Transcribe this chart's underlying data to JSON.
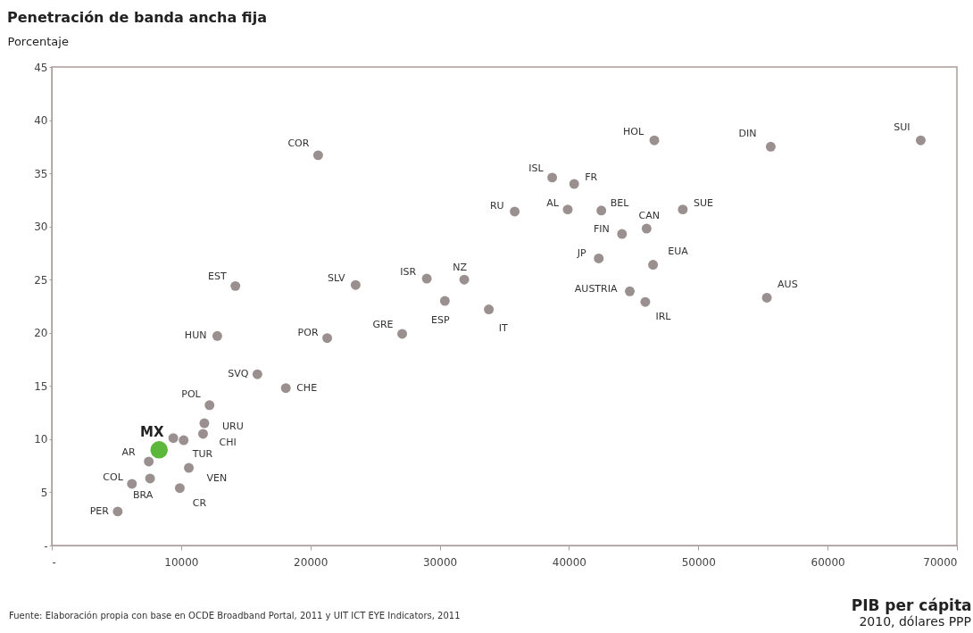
{
  "chart_data": {
    "type": "scatter",
    "title": "Penetración de banda ancha fija",
    "ylabel": "Porcentaje",
    "xlabel": "PIB per cápita",
    "series": [
      {
        "color": "#9a908f",
        "x": [
          20600,
          14200,
          12800,
          21300,
          15900,
          18100,
          12200,
          11800,
          11700,
          10200,
          7500,
          10600,
          6200,
          7600,
          9900,
          5100,
          23500,
          29000,
          31900,
          30400,
          33800,
          27100,
          35800,
          38700,
          40400,
          39900,
          42500,
          46000,
          44100,
          42300,
          46600,
          44700,
          45900,
          46500,
          48800,
          55600,
          55300,
          67200,
          9400
        ],
        "values": [
          36.7,
          24.4,
          19.7,
          19.5,
          16.1,
          14.8,
          13.2,
          11.5,
          10.5,
          9.9,
          7.9,
          7.3,
          5.8,
          6.3,
          5.4,
          3.2,
          24.5,
          25.1,
          25.0,
          23.0,
          22.2,
          19.9,
          31.4,
          34.6,
          34.0,
          31.6,
          31.5,
          29.8,
          29.3,
          27.0,
          38.1,
          23.9,
          22.9,
          26.4,
          31.6,
          37.5,
          23.3,
          38.1,
          10.1
        ]
      },
      {
        "name": "MX",
        "color": "#5cb83a",
        "x": [
          8300
        ],
        "values": [
          9.0
        ]
      }
    ],
    "xlim": [
      0,
      70000
    ],
    "xticks": [
      {
        "value": 0,
        "label": "-"
      },
      10000,
      20000,
      30000,
      40000,
      50000,
      60000,
      70000
    ],
    "ylim": [
      0,
      45
    ],
    "yticks": [
      {
        "value": 0,
        "label": "-"
      },
      5,
      10,
      15,
      20,
      25,
      30,
      35,
      40,
      45
    ],
    "grid": false,
    "annotations": [
      {
        "text": "COR",
        "x": 20600,
        "y": 36.7
      },
      {
        "text": "EST",
        "x": 14200,
        "y": 24.4
      },
      {
        "text": "HUN",
        "x": 12800,
        "y": 19.7
      },
      {
        "text": "POR",
        "x": 21300,
        "y": 19.5
      },
      {
        "text": "SVQ",
        "x": 15900,
        "y": 16.1
      },
      {
        "text": "CHE",
        "x": 18100,
        "y": 14.8
      },
      {
        "text": "POL",
        "x": 12200,
        "y": 13.2
      },
      {
        "text": "URU",
        "x": 11800,
        "y": 11.5
      },
      {
        "text": "CHI",
        "x": 11700,
        "y": 10.5
      },
      {
        "text": "TUR",
        "x": 10200,
        "y": 9.9
      },
      {
        "text": "AR",
        "x": 7500,
        "y": 7.9
      },
      {
        "text": "VEN",
        "x": 10600,
        "y": 7.3
      },
      {
        "text": "COL",
        "x": 6200,
        "y": 5.8
      },
      {
        "text": "BRA",
        "x": 7600,
        "y": 6.3
      },
      {
        "text": "CR",
        "x": 9900,
        "y": 5.4
      },
      {
        "text": "PER",
        "x": 5100,
        "y": 3.2
      },
      {
        "text": "SLV",
        "x": 23500,
        "y": 24.5
      },
      {
        "text": "ISR",
        "x": 29000,
        "y": 25.1
      },
      {
        "text": "NZ",
        "x": 31900,
        "y": 25.0
      },
      {
        "text": "ESP",
        "x": 30400,
        "y": 23.0
      },
      {
        "text": "IT",
        "x": 33800,
        "y": 22.2
      },
      {
        "text": "GRE",
        "x": 27100,
        "y": 19.9
      },
      {
        "text": "RU",
        "x": 35800,
        "y": 31.4
      },
      {
        "text": "ISL",
        "x": 38700,
        "y": 34.6
      },
      {
        "text": "FR",
        "x": 40400,
        "y": 34.0
      },
      {
        "text": "AL",
        "x": 39900,
        "y": 31.6
      },
      {
        "text": "BEL",
        "x": 42500,
        "y": 31.5
      },
      {
        "text": "CAN",
        "x": 46000,
        "y": 29.8
      },
      {
        "text": "FIN",
        "x": 44100,
        "y": 29.3
      },
      {
        "text": "JP",
        "x": 42300,
        "y": 27.0
      },
      {
        "text": "HOL",
        "x": 46600,
        "y": 38.1
      },
      {
        "text": "AUSTRIA",
        "x": 44700,
        "y": 23.9
      },
      {
        "text": "IRL",
        "x": 45900,
        "y": 22.9
      },
      {
        "text": "EUA",
        "x": 46500,
        "y": 26.4
      },
      {
        "text": "SUE",
        "x": 48800,
        "y": 31.6
      },
      {
        "text": "DIN",
        "x": 55600,
        "y": 37.5
      },
      {
        "text": "AUS",
        "x": 55300,
        "y": 23.3
      },
      {
        "text": "SUI",
        "x": 67200,
        "y": 38.1
      },
      "2010, dólares PPP",
      "Fuente: Elaboración propia con base en OCDE Broadband Portal, 2011 y UIT ICT EYE Indicators, 2011"
    ]
  }
}
